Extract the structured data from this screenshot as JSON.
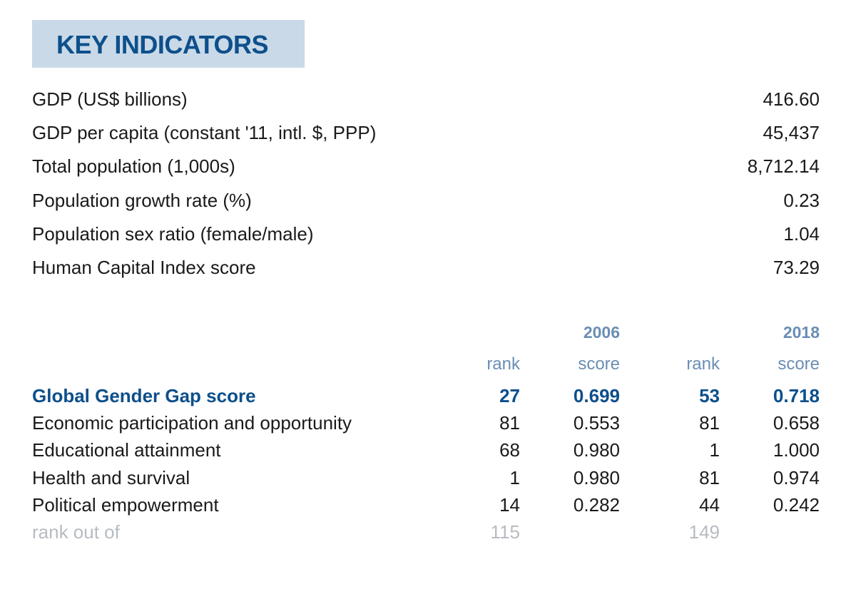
{
  "title": "KEY INDICATORS",
  "indicators": [
    {
      "label": "GDP (US$ billions)",
      "value": "416.60"
    },
    {
      "label": "GDP per capita (constant '11, intl. $, PPP)",
      "value": "45,437"
    },
    {
      "label": "Total population (1,000s)",
      "value": "8,712.14"
    },
    {
      "label": "Population growth rate (%)",
      "value": "0.23"
    },
    {
      "label": "Population sex ratio (female/male)",
      "value": "1.04"
    },
    {
      "label": "Human Capital Index score",
      "value": "73.29"
    }
  ],
  "gender_gap": {
    "years": [
      "2006",
      "2018"
    ],
    "subheaders": [
      "rank",
      "score",
      "rank",
      "score"
    ],
    "main": {
      "label": "Global Gender Gap score",
      "rank_2006": "27",
      "score_2006": "0.699",
      "rank_2018": "53",
      "score_2018": "0.718"
    },
    "rows": [
      {
        "label": "Economic participation and opportunity",
        "rank_2006": "81",
        "score_2006": "0.553",
        "rank_2018": "81",
        "score_2018": "0.658"
      },
      {
        "label": "Educational attainment",
        "rank_2006": "68",
        "score_2006": "0.980",
        "rank_2018": "1",
        "score_2018": "1.000"
      },
      {
        "label": "Health and survival",
        "rank_2006": "1",
        "score_2006": "0.980",
        "rank_2018": "81",
        "score_2018": "0.974"
      },
      {
        "label": "Political empowerment",
        "rank_2006": "14",
        "score_2006": "0.282",
        "rank_2018": "44",
        "score_2018": "0.242"
      }
    ],
    "footer": {
      "label": "rank out of",
      "total_2006": "115",
      "total_2018": "149"
    }
  },
  "colors": {
    "title_bg": "#c9d9e8",
    "title_text": "#0d4f8b",
    "header_text": "#6a8eb4",
    "footer_text": "#b7bcc2"
  }
}
